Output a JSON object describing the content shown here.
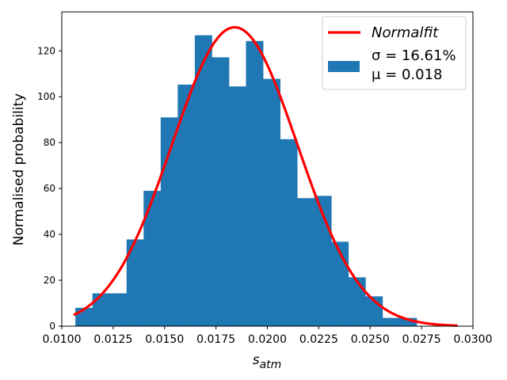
{
  "chart_data": {
    "type": "histogram",
    "xlabel_base": "s",
    "xlabel_sub": "atm",
    "ylabel": "Normalised probability",
    "xlim": [
      0.01,
      0.03
    ],
    "ylim": [
      0,
      137
    ],
    "xticks": [
      0.01,
      0.0125,
      0.015,
      0.0175,
      0.02,
      0.0225,
      0.025,
      0.0275,
      0.03
    ],
    "xtick_labels": [
      "0.0100",
      "0.0125",
      "0.0150",
      "0.0175",
      "0.0200",
      "0.0225",
      "0.0250",
      "0.0275",
      "0.0300"
    ],
    "yticks": [
      0,
      20,
      40,
      60,
      80,
      100,
      120
    ],
    "ytick_labels": [
      "0",
      "20",
      "40",
      "60",
      "80",
      "100",
      "120"
    ],
    "bins": [
      {
        "start": 0.01066,
        "end": 0.01149,
        "value": 8
      },
      {
        "start": 0.01149,
        "end": 0.01232,
        "value": 14.3
      },
      {
        "start": 0.01232,
        "end": 0.01315,
        "value": 14.3
      },
      {
        "start": 0.01315,
        "end": 0.01398,
        "value": 37.8
      },
      {
        "start": 0.01398,
        "end": 0.01481,
        "value": 59
      },
      {
        "start": 0.01481,
        "end": 0.01564,
        "value": 91
      },
      {
        "start": 0.01564,
        "end": 0.01647,
        "value": 105.3
      },
      {
        "start": 0.01647,
        "end": 0.0173,
        "value": 126.8
      },
      {
        "start": 0.0173,
        "end": 0.01813,
        "value": 117.2
      },
      {
        "start": 0.01813,
        "end": 0.01896,
        "value": 104.5
      },
      {
        "start": 0.01896,
        "end": 0.01979,
        "value": 124.3
      },
      {
        "start": 0.01979,
        "end": 0.02062,
        "value": 107.8
      },
      {
        "start": 0.02062,
        "end": 0.02145,
        "value": 81.5
      },
      {
        "start": 0.02145,
        "end": 0.02228,
        "value": 55.8
      },
      {
        "start": 0.02228,
        "end": 0.02311,
        "value": 56.8
      },
      {
        "start": 0.02311,
        "end": 0.02394,
        "value": 36.8
      },
      {
        "start": 0.02394,
        "end": 0.02477,
        "value": 21.3
      },
      {
        "start": 0.02477,
        "end": 0.0256,
        "value": 13
      },
      {
        "start": 0.0256,
        "end": 0.02643,
        "value": 3.6
      },
      {
        "start": 0.02643,
        "end": 0.02726,
        "value": 3.6
      }
    ],
    "fit": {
      "mu": 0.01841,
      "sigma": 0.003057,
      "peak": 130.3,
      "x_start": 0.01062,
      "x_end": 0.0292
    },
    "legend": {
      "position": "top-right",
      "line_label": "Normalfit",
      "sigma_text": "σ = 16.61%",
      "mu_text": "μ = 0.018"
    },
    "colors": {
      "bars": "#1f77b4",
      "fit": "#ff0000"
    }
  }
}
